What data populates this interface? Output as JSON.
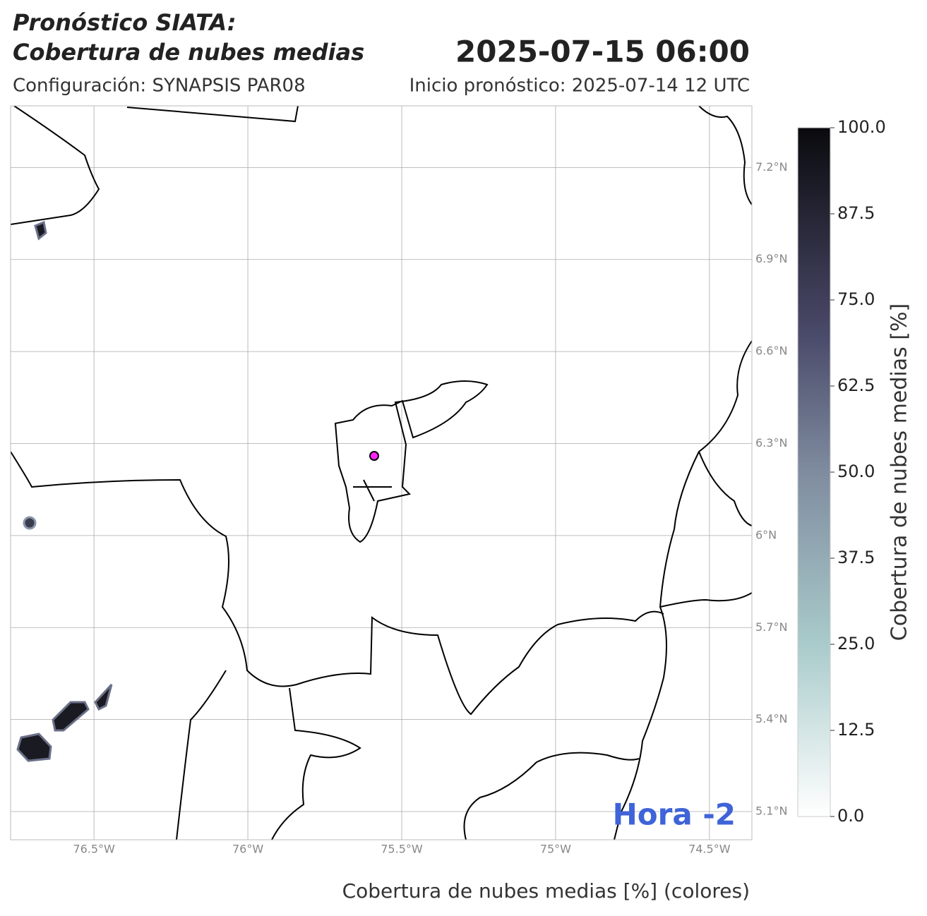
{
  "header": {
    "title_line1": "Pronóstico SIATA:",
    "title_line2": "Cobertura de nubes medias",
    "datetime": "2025-07-15 06:00",
    "config": "Configuración: SYNAPSIS PAR08",
    "init": "Inicio pronóstico: 2025-07-14 12 UTC"
  },
  "map": {
    "xlim": [
      -76.771,
      -74.362
    ],
    "ylim": [
      5.008,
      7.401
    ],
    "lat_ticks": [
      {
        "value": 7.2,
        "label": "7.2°N"
      },
      {
        "value": 6.9,
        "label": "6.9°N"
      },
      {
        "value": 6.6,
        "label": "6.6°N"
      },
      {
        "value": 6.3,
        "label": "6.3°N"
      },
      {
        "value": 6.0,
        "label": "6°N"
      },
      {
        "value": 5.7,
        "label": "5.7°N"
      },
      {
        "value": 5.4,
        "label": "5.4°N"
      },
      {
        "value": 5.1,
        "label": "5.1°N"
      }
    ],
    "lon_ticks": [
      {
        "value": -76.5,
        "label": "76.5°W"
      },
      {
        "value": -76.0,
        "label": "76°W"
      },
      {
        "value": -75.5,
        "label": "75.5°W"
      },
      {
        "value": -75.0,
        "label": "75°W"
      },
      {
        "value": -74.5,
        "label": "74.5°W"
      }
    ],
    "annotation": "Hora -2",
    "xlabel": "Cobertura de nubes medias [%] (colores)"
  },
  "colorbar": {
    "label": "Cobertura de nubes medias [%]",
    "range": [
      0,
      100
    ],
    "ticks": [
      {
        "value": 0,
        "label": "0.0"
      },
      {
        "value": 12.5,
        "label": "12.5"
      },
      {
        "value": 25,
        "label": "25.0"
      },
      {
        "value": 37.5,
        "label": "37.5"
      },
      {
        "value": 50,
        "label": "50.0"
      },
      {
        "value": 62.5,
        "label": "62.5"
      },
      {
        "value": 75,
        "label": "75.0"
      },
      {
        "value": 87.5,
        "label": "87.5"
      },
      {
        "value": 100,
        "label": "100.0"
      }
    ]
  }
}
